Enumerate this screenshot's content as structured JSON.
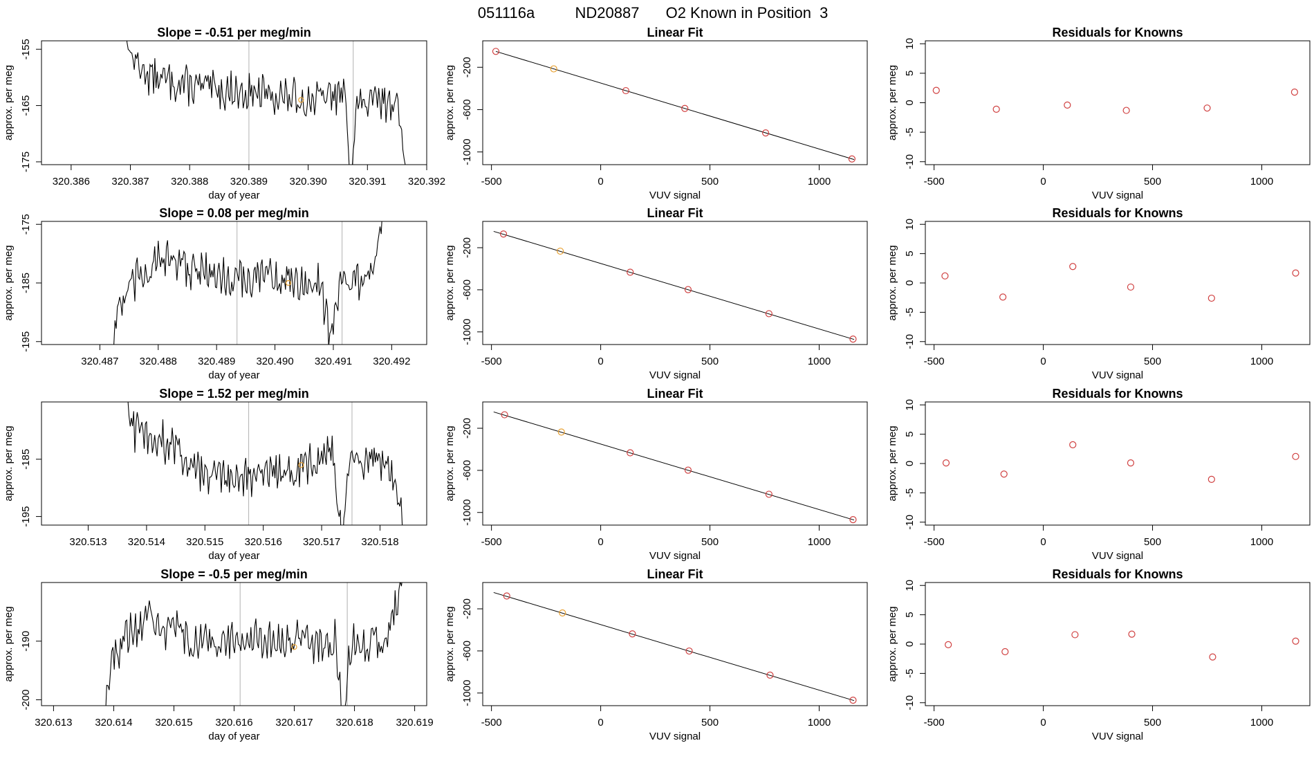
{
  "header": {
    "run_id": "051116a",
    "sample_id": "ND20887",
    "description": "O2 Known in Position  3"
  },
  "colors": {
    "axis": "#000000",
    "trace": "#000000",
    "fit_line": "#000000",
    "known_point": "#d04040",
    "highlight_point": "#e8a030",
    "vertical_marker": "#b0b0b0"
  },
  "chart_data": [
    {
      "row": 0,
      "type": "line",
      "title": "Slope =  -0.51  per meg/min",
      "xlabel": "day of year",
      "ylabel": "approx. per meg",
      "xlim": [
        320.3855,
        320.392
      ],
      "ylim": [
        -175.5,
        -153.5
      ],
      "xticks": [
        "320.386",
        "320.387",
        "320.388",
        "320.389",
        "320.390",
        "320.391",
        "320.392"
      ],
      "xtick_values": [
        320.386,
        320.387,
        320.388,
        320.389,
        320.39,
        320.391,
        320.392
      ],
      "yticks": [
        "-155",
        "-165",
        "-175"
      ],
      "ytick_values": [
        -155,
        -165,
        -175
      ],
      "x_start": 320.3868,
      "x_end": 320.3917,
      "base": -164,
      "trend": [
        [
          0,
          -148
        ],
        [
          0.05,
          -157
        ],
        [
          0.12,
          -160
        ],
        [
          0.3,
          -162
        ],
        [
          0.5,
          -163
        ],
        [
          0.65,
          -164
        ],
        [
          0.78,
          -163
        ],
        [
          0.8,
          -178
        ],
        [
          0.82,
          -165
        ],
        [
          0.95,
          -164
        ],
        [
          0.97,
          -168
        ],
        [
          1,
          -178
        ]
      ],
      "vlines": [
        320.389,
        320.39076
      ],
      "highlight": {
        "x": 320.38988,
        "y": -164
      }
    },
    {
      "row": 0,
      "type": "scatter",
      "title": "Linear Fit",
      "xlabel": "VUV signal",
      "ylabel": "approx. per meg",
      "xlim": [
        -540,
        1220
      ],
      "ylim": [
        -1120,
        50
      ],
      "xticks": [
        "-500",
        "0",
        "500",
        "1000"
      ],
      "xtick_values": [
        -500,
        0,
        500,
        1000
      ],
      "yticks": [
        "-200",
        "-600",
        "-1000"
      ],
      "ytick_values": [
        -200,
        -600,
        -1000
      ],
      "fit": {
        "x": [
          -480,
          1160
        ],
        "y": [
          -50,
          -1072
        ]
      },
      "points": [
        {
          "x": -480,
          "y": -50,
          "highlight": false
        },
        {
          "x": -215,
          "y": -215,
          "highlight": true
        },
        {
          "x": 115,
          "y": -421,
          "highlight": false
        },
        {
          "x": 385,
          "y": -589,
          "highlight": false
        },
        {
          "x": 755,
          "y": -820,
          "highlight": false
        },
        {
          "x": 1150,
          "y": -1066,
          "highlight": false
        }
      ]
    },
    {
      "row": 0,
      "type": "scatter",
      "title": "Residuals for Knowns",
      "xlabel": "VUV signal",
      "ylabel": "approx. per meg",
      "xlim": [
        -540,
        1220
      ],
      "ylim": [
        -10.5,
        10.5
      ],
      "xticks": [
        "-500",
        "0",
        "500",
        "1000"
      ],
      "xtick_values": [
        -500,
        0,
        500,
        1000
      ],
      "yticks": [
        "10",
        "5",
        "0",
        "-5",
        "-10"
      ],
      "ytick_values": [
        10,
        5,
        0,
        -5,
        -10
      ],
      "points": [
        {
          "x": -490,
          "y": 2.1
        },
        {
          "x": -215,
          "y": -1.1
        },
        {
          "x": 110,
          "y": -0.4
        },
        {
          "x": 380,
          "y": -1.3
        },
        {
          "x": 750,
          "y": -0.9
        },
        {
          "x": 1150,
          "y": 1.8
        }
      ]
    },
    {
      "row": 1,
      "type": "line",
      "title": "Slope =  0.08  per meg/min",
      "xlabel": "day of year",
      "ylabel": "approx. per meg",
      "xlim": [
        320.486,
        320.4926
      ],
      "ylim": [
        -195.5,
        -174.5
      ],
      "xticks": [
        "320.487",
        "320.488",
        "320.489",
        "320.490",
        "320.491",
        "320.492"
      ],
      "xtick_values": [
        320.487,
        320.488,
        320.489,
        320.49,
        320.491,
        320.492
      ],
      "yticks": [
        "-175",
        "-185",
        "-195"
      ],
      "ytick_values": [
        -175,
        -185,
        -195
      ],
      "x_start": 320.4871,
      "x_end": 320.4919,
      "base": -184,
      "trend": [
        [
          0,
          -210
        ],
        [
          0.04,
          -190
        ],
        [
          0.1,
          -185
        ],
        [
          0.2,
          -181
        ],
        [
          0.4,
          -184
        ],
        [
          0.6,
          -184
        ],
        [
          0.76,
          -185
        ],
        [
          0.8,
          -193
        ],
        [
          0.84,
          -185
        ],
        [
          0.95,
          -184
        ],
        [
          1,
          -172
        ]
      ],
      "vlines": [
        320.48935,
        320.49115
      ],
      "highlight": {
        "x": 320.49023,
        "y": -185
      }
    },
    {
      "row": 1,
      "type": "scatter",
      "title": "Linear Fit",
      "xlabel": "VUV signal",
      "ylabel": "approx. per meg",
      "xlim": [
        -540,
        1220
      ],
      "ylim": [
        -1120,
        50
      ],
      "xticks": [
        "-500",
        "0",
        "500",
        "1000"
      ],
      "xtick_values": [
        -500,
        0,
        500,
        1000
      ],
      "yticks": [
        "-200",
        "-600",
        "-1000"
      ],
      "ytick_values": [
        -200,
        -600,
        -1000
      ],
      "fit": {
        "x": [
          -490,
          1160
        ],
        "y": [
          -45,
          -1072
        ]
      },
      "points": [
        {
          "x": -445,
          "y": -70,
          "highlight": false
        },
        {
          "x": -185,
          "y": -233,
          "highlight": true
        },
        {
          "x": 135,
          "y": -433,
          "highlight": false
        },
        {
          "x": 400,
          "y": -598,
          "highlight": false
        },
        {
          "x": 770,
          "y": -827,
          "highlight": false
        },
        {
          "x": 1155,
          "y": -1068,
          "highlight": false
        }
      ]
    },
    {
      "row": 1,
      "type": "scatter",
      "title": "Residuals for Knowns",
      "xlabel": "VUV signal",
      "ylabel": "approx. per meg",
      "xlim": [
        -540,
        1220
      ],
      "ylim": [
        -10.5,
        10.5
      ],
      "xticks": [
        "-500",
        "0",
        "500",
        "1000"
      ],
      "xtick_values": [
        -500,
        0,
        500,
        1000
      ],
      "yticks": [
        "10",
        "5",
        "0",
        "-5",
        "-10"
      ],
      "ytick_values": [
        10,
        5,
        0,
        -5,
        -10
      ],
      "points": [
        {
          "x": -450,
          "y": 1.2
        },
        {
          "x": -185,
          "y": -2.4
        },
        {
          "x": 135,
          "y": 2.8
        },
        {
          "x": 400,
          "y": -0.7
        },
        {
          "x": 770,
          "y": -2.6
        },
        {
          "x": 1155,
          "y": 1.7
        }
      ]
    },
    {
      "row": 2,
      "type": "line",
      "title": "Slope =  1.52  per meg/min",
      "xlabel": "day of year",
      "ylabel": "approx. per meg",
      "xlim": [
        320.5122,
        320.5188
      ],
      "ylim": [
        -196.5,
        -175
      ],
      "xticks": [
        "320.513",
        "320.514",
        "320.515",
        "320.516",
        "320.517",
        "320.518"
      ],
      "xtick_values": [
        320.513,
        320.514,
        320.515,
        320.516,
        320.517,
        320.518
      ],
      "yticks": [
        "-185",
        "-195"
      ],
      "ytick_values": [
        -185,
        -195
      ],
      "x_start": 320.5136,
      "x_end": 320.5184,
      "base": -186,
      "trend": [
        [
          0,
          -172
        ],
        [
          0.04,
          -180
        ],
        [
          0.15,
          -182
        ],
        [
          0.3,
          -188
        ],
        [
          0.45,
          -188
        ],
        [
          0.6,
          -187
        ],
        [
          0.75,
          -184
        ],
        [
          0.78,
          -200
        ],
        [
          0.81,
          -184
        ],
        [
          0.95,
          -186
        ],
        [
          1,
          -197
        ]
      ],
      "vlines": [
        320.51575,
        320.51752
      ],
      "highlight": {
        "x": 320.51665,
        "y": -186
      }
    },
    {
      "row": 2,
      "type": "scatter",
      "title": "Linear Fit",
      "xlabel": "VUV signal",
      "ylabel": "approx. per meg",
      "xlim": [
        -540,
        1220
      ],
      "ylim": [
        -1120,
        50
      ],
      "xticks": [
        "-500",
        "0",
        "500",
        "1000"
      ],
      "xtick_values": [
        -500,
        0,
        500,
        1000
      ],
      "yticks": [
        "-200",
        "-600",
        "-1000"
      ],
      "ytick_values": [
        -200,
        -600,
        -1000
      ],
      "fit": {
        "x": [
          -490,
          1160
        ],
        "y": [
          -45,
          -1072
        ]
      },
      "points": [
        {
          "x": -440,
          "y": -72,
          "highlight": false
        },
        {
          "x": -180,
          "y": -236,
          "highlight": true
        },
        {
          "x": 135,
          "y": -433,
          "highlight": false
        },
        {
          "x": 400,
          "y": -598,
          "highlight": false
        },
        {
          "x": 770,
          "y": -827,
          "highlight": false
        },
        {
          "x": 1155,
          "y": -1068,
          "highlight": false
        }
      ]
    },
    {
      "row": 2,
      "type": "scatter",
      "title": "Residuals for Knowns",
      "xlabel": "VUV signal",
      "ylabel": "approx. per meg",
      "xlim": [
        -540,
        1220
      ],
      "ylim": [
        -10.5,
        10.5
      ],
      "xticks": [
        "-500",
        "0",
        "500",
        "1000"
      ],
      "xtick_values": [
        -500,
        0,
        500,
        1000
      ],
      "yticks": [
        "10",
        "5",
        "0",
        "-5",
        "-10"
      ],
      "ytick_values": [
        10,
        5,
        0,
        -5,
        -10
      ],
      "points": [
        {
          "x": -445,
          "y": 0.1
        },
        {
          "x": -180,
          "y": -1.8
        },
        {
          "x": 135,
          "y": 3.2
        },
        {
          "x": 400,
          "y": 0.1
        },
        {
          "x": 770,
          "y": -2.7
        },
        {
          "x": 1155,
          "y": 1.2
        }
      ]
    },
    {
      "row": 3,
      "type": "line",
      "title": "Slope =  -0.5  per meg/min",
      "xlabel": "day of year",
      "ylabel": "approx. per meg",
      "xlim": [
        320.6128,
        320.6192
      ],
      "ylim": [
        -201,
        -180
      ],
      "xticks": [
        "320.613",
        "320.614",
        "320.615",
        "320.616",
        "320.617",
        "320.618",
        "320.619"
      ],
      "xtick_values": [
        320.613,
        320.614,
        320.615,
        320.616,
        320.617,
        320.618,
        320.619
      ],
      "yticks": [
        "-190",
        "-200"
      ],
      "ytick_values": [
        -190,
        -200
      ],
      "x_start": 320.6138,
      "x_end": 320.6188,
      "base": -190,
      "trend": [
        [
          0,
          -205
        ],
        [
          0.04,
          -192
        ],
        [
          0.15,
          -186
        ],
        [
          0.3,
          -190
        ],
        [
          0.5,
          -190
        ],
        [
          0.7,
          -190
        ],
        [
          0.78,
          -190
        ],
        [
          0.8,
          -204
        ],
        [
          0.83,
          -190
        ],
        [
          0.95,
          -190
        ],
        [
          1,
          -178
        ]
      ],
      "vlines": [
        320.6161,
        320.61788
      ],
      "highlight": {
        "x": 320.617,
        "y": -191
      }
    },
    {
      "row": 3,
      "type": "scatter",
      "title": "Linear Fit",
      "xlabel": "VUV signal",
      "ylabel": "approx. per meg",
      "xlim": [
        -540,
        1220
      ],
      "ylim": [
        -1120,
        50
      ],
      "xticks": [
        "-500",
        "0",
        "500",
        "1000"
      ],
      "xtick_values": [
        -500,
        0,
        500,
        1000
      ],
      "yticks": [
        "-200",
        "-600",
        "-1000"
      ],
      "ytick_values": [
        -200,
        -600,
        -1000
      ],
      "fit": {
        "x": [
          -490,
          1160
        ],
        "y": [
          -45,
          -1072
        ]
      },
      "points": [
        {
          "x": -430,
          "y": -78,
          "highlight": false
        },
        {
          "x": -175,
          "y": -239,
          "highlight": true
        },
        {
          "x": 145,
          "y": -438,
          "highlight": false
        },
        {
          "x": 405,
          "y": -601,
          "highlight": false
        },
        {
          "x": 775,
          "y": -830,
          "highlight": false
        },
        {
          "x": 1155,
          "y": -1068,
          "highlight": false
        }
      ]
    },
    {
      "row": 3,
      "type": "scatter",
      "title": "Residuals for Knowns",
      "xlabel": "VUV signal",
      "ylabel": "approx. per meg",
      "xlim": [
        -540,
        1220
      ],
      "ylim": [
        -10.5,
        10.5
      ],
      "xticks": [
        "-500",
        "0",
        "500",
        "1000"
      ],
      "xtick_values": [
        -500,
        0,
        500,
        1000
      ],
      "yticks": [
        "10",
        "5",
        "0",
        "-5",
        "-10"
      ],
      "ytick_values": [
        10,
        5,
        0,
        -5,
        -10
      ],
      "points": [
        {
          "x": -435,
          "y": -0.1
        },
        {
          "x": -175,
          "y": -1.3
        },
        {
          "x": 145,
          "y": 1.6
        },
        {
          "x": 405,
          "y": 1.7
        },
        {
          "x": 775,
          "y": -2.2
        },
        {
          "x": 1155,
          "y": 0.5
        }
      ]
    }
  ]
}
